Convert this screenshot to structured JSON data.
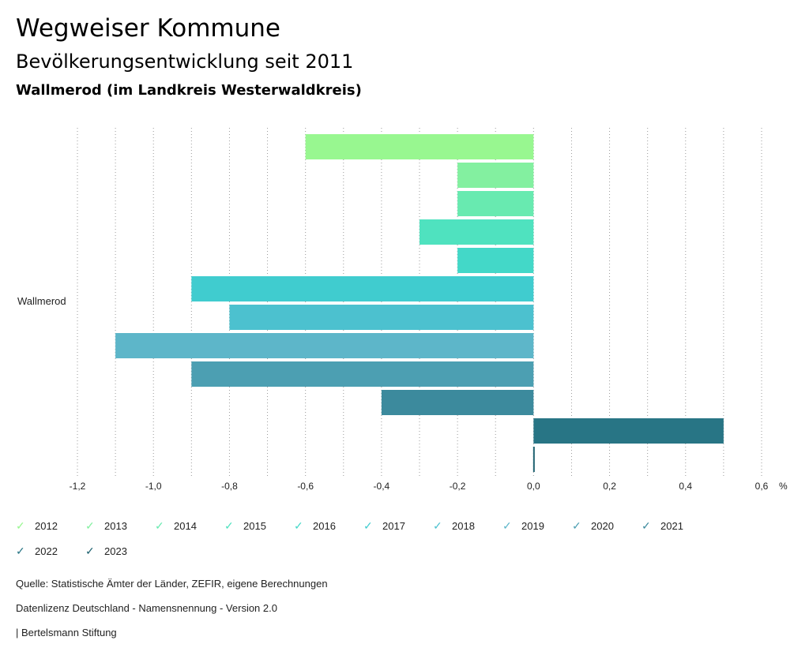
{
  "header": {
    "title": "Wegweiser Kommune",
    "subtitle": "Bevölkerungsentwicklung seit 2011",
    "region": "Wallmerod (im Landkreis Westerwaldkreis)"
  },
  "chart_data": {
    "type": "bar",
    "orientation": "horizontal",
    "categories": [
      "Wallmerod"
    ],
    "xlim": [
      -1.2,
      0.6
    ],
    "xticks": [
      -1.2,
      -1.0,
      -0.8,
      -0.6,
      -0.4,
      -0.2,
      0.0,
      0.2,
      0.4,
      0.6
    ],
    "xtick_labels": [
      "-1,2",
      "-1,0",
      "-0,8",
      "-0,6",
      "-0,4",
      "-0,2",
      "0,0",
      "0,2",
      "0,4",
      "0,6"
    ],
    "xlabel": "%",
    "grid": "vertical dotted",
    "series": [
      {
        "name": "2012",
        "values": [
          -0.6
        ],
        "color": "#98f790"
      },
      {
        "name": "2013",
        "values": [
          -0.2
        ],
        "color": "#83f0a0"
      },
      {
        "name": "2014",
        "values": [
          -0.2
        ],
        "color": "#68eab0"
      },
      {
        "name": "2015",
        "values": [
          -0.3
        ],
        "color": "#4fe2bf"
      },
      {
        "name": "2016",
        "values": [
          -0.2
        ],
        "color": "#43d8c8"
      },
      {
        "name": "2017",
        "values": [
          -0.9
        ],
        "color": "#40cccf"
      },
      {
        "name": "2018",
        "values": [
          -0.8
        ],
        "color": "#4cc1cf"
      },
      {
        "name": "2019",
        "values": [
          -1.1
        ],
        "color": "#5db6c9"
      },
      {
        "name": "2020",
        "values": [
          -0.9
        ],
        "color": "#4c9fb2"
      },
      {
        "name": "2021",
        "values": [
          -0.4
        ],
        "color": "#3c8a9d"
      },
      {
        "name": "2022",
        "values": [
          0.5
        ],
        "color": "#287585"
      },
      {
        "name": "2023",
        "values": [
          0.0
        ],
        "color": "#1e6270"
      }
    ]
  },
  "footer": {
    "source": "Quelle: Statistische Ämter der Länder, ZEFIR, eigene Berechnungen",
    "license": "Datenlizenz Deutschland - Namensnennung - Version 2.0",
    "publisher": "| Bertelsmann Stiftung"
  }
}
